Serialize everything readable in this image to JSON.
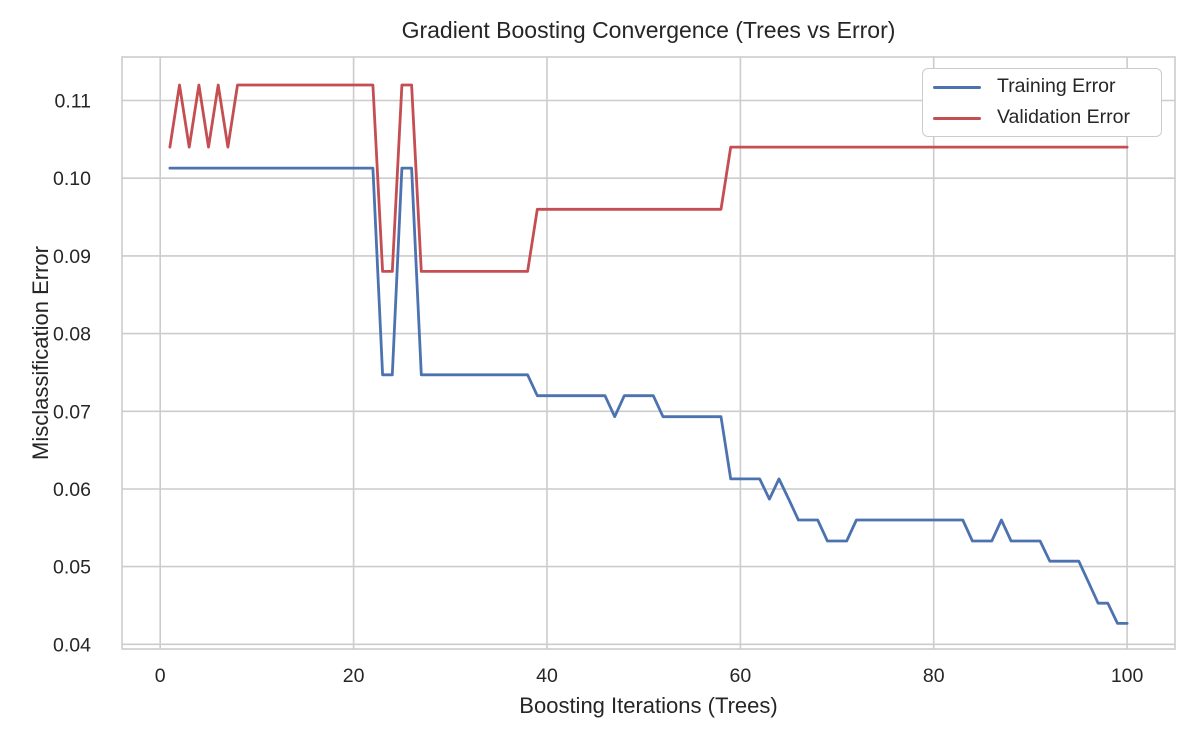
{
  "chart_data": {
    "type": "line",
    "title": "Gradient Boosting Convergence (Trees vs Error)",
    "xlabel": "Boosting Iterations (Trees)",
    "ylabel": "Misclassification Error",
    "xlim": [
      -3.95,
      104.95
    ],
    "ylim": [
      0.0394,
      0.1156
    ],
    "xticks": [
      0,
      20,
      40,
      60,
      80,
      100
    ],
    "yticks": [
      0.04,
      0.05,
      0.06,
      0.07,
      0.08,
      0.09,
      0.1,
      0.11
    ],
    "grid": true,
    "legend_position": "upper right",
    "x_start": 1,
    "grid_color": "#cccccc",
    "text_color": "#262626",
    "series": [
      {
        "name": "Training Error",
        "color": "#4C72B0",
        "values": [
          0.1013,
          0.1013,
          0.1013,
          0.1013,
          0.1013,
          0.1013,
          0.1013,
          0.1013,
          0.1013,
          0.1013,
          0.1013,
          0.1013,
          0.1013,
          0.1013,
          0.1013,
          0.1013,
          0.1013,
          0.1013,
          0.1013,
          0.1013,
          0.1013,
          0.1013,
          0.0747,
          0.0747,
          0.1013,
          0.1013,
          0.0747,
          0.0747,
          0.0747,
          0.0747,
          0.0747,
          0.0747,
          0.0747,
          0.0747,
          0.0747,
          0.0747,
          0.0747,
          0.0747,
          0.072,
          0.072,
          0.072,
          0.072,
          0.072,
          0.072,
          0.072,
          0.072,
          0.0693,
          0.072,
          0.072,
          0.072,
          0.072,
          0.0693,
          0.0693,
          0.0693,
          0.0693,
          0.0693,
          0.0693,
          0.0693,
          0.0613,
          0.0613,
          0.0613,
          0.0613,
          0.0587,
          0.0613,
          0.0587,
          0.056,
          0.056,
          0.056,
          0.0533,
          0.0533,
          0.0533,
          0.056,
          0.056,
          0.056,
          0.056,
          0.056,
          0.056,
          0.056,
          0.056,
          0.056,
          0.056,
          0.056,
          0.056,
          0.0533,
          0.0533,
          0.0533,
          0.056,
          0.0533,
          0.0533,
          0.0533,
          0.0533,
          0.0507,
          0.0507,
          0.0507,
          0.0507,
          0.048,
          0.0453,
          0.0453,
          0.0427,
          0.0427
        ]
      },
      {
        "name": "Validation Error",
        "color": "#C44E52",
        "values": [
          0.104,
          0.112,
          0.104,
          0.112,
          0.104,
          0.112,
          0.104,
          0.112,
          0.112,
          0.112,
          0.112,
          0.112,
          0.112,
          0.112,
          0.112,
          0.112,
          0.112,
          0.112,
          0.112,
          0.112,
          0.112,
          0.112,
          0.088,
          0.088,
          0.112,
          0.112,
          0.088,
          0.088,
          0.088,
          0.088,
          0.088,
          0.088,
          0.088,
          0.088,
          0.088,
          0.088,
          0.088,
          0.088,
          0.096,
          0.096,
          0.096,
          0.096,
          0.096,
          0.096,
          0.096,
          0.096,
          0.096,
          0.096,
          0.096,
          0.096,
          0.096,
          0.096,
          0.096,
          0.096,
          0.096,
          0.096,
          0.096,
          0.096,
          0.104,
          0.104,
          0.104,
          0.104,
          0.104,
          0.104,
          0.104,
          0.104,
          0.104,
          0.104,
          0.104,
          0.104,
          0.104,
          0.104,
          0.104,
          0.104,
          0.104,
          0.104,
          0.104,
          0.104,
          0.104,
          0.104,
          0.104,
          0.104,
          0.104,
          0.104,
          0.104,
          0.104,
          0.104,
          0.104,
          0.104,
          0.104,
          0.104,
          0.104,
          0.104,
          0.104,
          0.104,
          0.104,
          0.104,
          0.104,
          0.104,
          0.104
        ]
      }
    ]
  }
}
